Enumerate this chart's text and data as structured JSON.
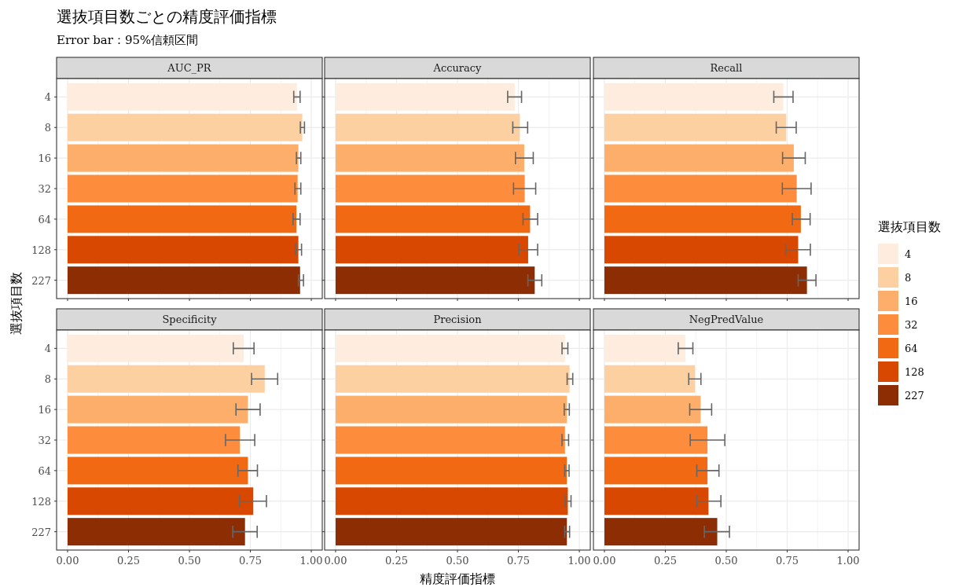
{
  "chart_data": [
    {
      "type": "bar",
      "orientation": "horizontal",
      "stacked": true,
      "title": "AUC_PR",
      "legend": "right",
      "legend_title": "選抜項目数",
      "annotations": [
        "選抜項目数ごとの精度評価指標"
      ],
      "subtitle": "Error bar：95%信頼区間",
      "ylabel": "選抜項目数",
      "grid": true,
      "tick_labels": "y",
      "categories": [
        "4",
        "8",
        "16",
        "32",
        "64",
        "128",
        "227"
      ],
      "xlim": [
        -0.045,
        1.045
      ],
      "xticks": [
        {
          "value": 0,
          "label": null
        },
        {
          "value": 0.25,
          "label": null
        },
        {
          "value": 0.5,
          "label": null
        },
        {
          "value": 0.75,
          "label": null
        },
        {
          "value": 1,
          "label": null
        }
      ],
      "series": [
        {
          "name": "4",
          "color": "#feedde",
          "values": [
            0.941,
            null,
            null,
            null,
            null,
            null,
            null
          ],
          "errors": [
            [
              0.928,
              0.954
            ],
            null,
            null,
            null,
            null,
            null,
            null
          ]
        },
        {
          "name": "8",
          "color": "#fdd0a2",
          "values": [
            null,
            0.963,
            null,
            null,
            null,
            null,
            null
          ],
          "errors": [
            null,
            [
              0.955,
              0.972
            ],
            null,
            null,
            null,
            null,
            null
          ]
        },
        {
          "name": "16",
          "color": "#fdae6b",
          "values": [
            null,
            null,
            0.947,
            null,
            null,
            null,
            null
          ],
          "errors": [
            null,
            null,
            [
              0.939,
              0.957
            ],
            null,
            null,
            null,
            null
          ]
        },
        {
          "name": "32",
          "color": "#fd8d3c",
          "values": [
            null,
            null,
            null,
            0.944,
            null,
            null,
            null
          ],
          "errors": [
            null,
            null,
            null,
            [
              0.933,
              0.957
            ],
            null,
            null,
            null
          ]
        },
        {
          "name": "64",
          "color": "#f16913",
          "values": [
            null,
            null,
            null,
            null,
            0.939,
            null,
            null
          ],
          "errors": [
            null,
            null,
            null,
            null,
            [
              0.925,
              0.954
            ],
            null,
            null
          ]
        },
        {
          "name": "128",
          "color": "#d94801",
          "values": [
            null,
            null,
            null,
            null,
            null,
            0.947,
            null
          ],
          "errors": [
            null,
            null,
            null,
            null,
            null,
            [
              0.936,
              0.96
            ],
            null
          ]
        },
        {
          "name": "227",
          "color": "#8c2d04",
          "values": [
            null,
            null,
            null,
            null,
            null,
            null,
            0.954
          ],
          "errors": [
            null,
            null,
            null,
            null,
            null,
            null,
            [
              0.947,
              0.968
            ]
          ]
        }
      ]
    },
    {
      "type": "bar",
      "orientation": "horizontal",
      "stacked": true,
      "title": "Accuracy",
      "grid": true,
      "tick_labels": false,
      "categories": [
        "4",
        "8",
        "16",
        "32",
        "64",
        "128",
        "227"
      ],
      "xlim": [
        -0.045,
        1.045
      ],
      "xticks": [
        {
          "value": 0,
          "label": null
        },
        {
          "value": 0.25,
          "label": null
        },
        {
          "value": 0.5,
          "label": null
        },
        {
          "value": 0.75,
          "label": null
        },
        {
          "value": 1,
          "label": null
        }
      ],
      "series": [
        {
          "color": "#feedde",
          "values": [
            0.735,
            null,
            null,
            null,
            null,
            null,
            null
          ],
          "errors": [
            [
              0.706,
              0.763
            ],
            null,
            null,
            null,
            null,
            null,
            null
          ]
        },
        {
          "color": "#fdd0a2",
          "values": [
            null,
            0.756,
            null,
            null,
            null,
            null,
            null
          ],
          "errors": [
            null,
            [
              0.727,
              0.788
            ],
            null,
            null,
            null,
            null,
            null
          ]
        },
        {
          "color": "#fdae6b",
          "values": [
            null,
            null,
            0.774,
            null,
            null,
            null,
            null
          ],
          "errors": [
            null,
            null,
            [
              0.738,
              0.811
            ],
            null,
            null,
            null,
            null
          ]
        },
        {
          "color": "#fd8d3c",
          "values": [
            null,
            null,
            null,
            0.776,
            null,
            null,
            null
          ],
          "errors": [
            null,
            null,
            null,
            [
              0.73,
              0.821
            ],
            null,
            null,
            null
          ]
        },
        {
          "color": "#f16913",
          "values": [
            null,
            null,
            null,
            null,
            0.798,
            null,
            null
          ],
          "errors": [
            null,
            null,
            null,
            null,
            [
              0.769,
              0.829
            ],
            null,
            null
          ]
        },
        {
          "color": "#d94801",
          "values": [
            null,
            null,
            null,
            null,
            null,
            0.79,
            null
          ],
          "errors": [
            null,
            null,
            null,
            null,
            null,
            [
              0.752,
              0.829
            ],
            null
          ]
        },
        {
          "color": "#8c2d04",
          "values": [
            null,
            null,
            null,
            null,
            null,
            null,
            0.817
          ],
          "errors": [
            null,
            null,
            null,
            null,
            null,
            null,
            [
              0.789,
              0.846
            ]
          ]
        }
      ]
    },
    {
      "type": "bar",
      "orientation": "horizontal",
      "stacked": true,
      "title": "Recall",
      "grid": true,
      "tick_labels": false,
      "categories": [
        "4",
        "8",
        "16",
        "32",
        "64",
        "128",
        "227"
      ],
      "xlim": [
        -0.045,
        1.045
      ],
      "xticks": [
        {
          "value": 0,
          "label": null
        },
        {
          "value": 0.25,
          "label": null
        },
        {
          "value": 0.5,
          "label": null
        },
        {
          "value": 0.75,
          "label": null
        },
        {
          "value": 1,
          "label": null
        }
      ],
      "series": [
        {
          "color": "#feedde",
          "values": [
            0.734,
            null,
            null,
            null,
            null,
            null,
            null
          ],
          "errors": [
            [
              0.695,
              0.774
            ],
            null,
            null,
            null,
            null,
            null,
            null
          ]
        },
        {
          "color": "#fdd0a2",
          "values": [
            null,
            0.746,
            null,
            null,
            null,
            null,
            null
          ],
          "errors": [
            null,
            [
              0.705,
              0.787
            ],
            null,
            null,
            null,
            null,
            null
          ]
        },
        {
          "color": "#fdae6b",
          "values": [
            null,
            null,
            0.777,
            null,
            null,
            null,
            null
          ],
          "errors": [
            null,
            null,
            [
              0.731,
              0.824
            ],
            null,
            null,
            null,
            null
          ]
        },
        {
          "color": "#fd8d3c",
          "values": [
            null,
            null,
            null,
            0.789,
            null,
            null,
            null
          ],
          "errors": [
            null,
            null,
            null,
            [
              0.73,
              0.848
            ],
            null,
            null,
            null
          ]
        },
        {
          "color": "#f16913",
          "values": [
            null,
            null,
            null,
            null,
            0.806,
            null,
            null
          ],
          "errors": [
            null,
            null,
            null,
            null,
            [
              0.771,
              0.844
            ],
            null,
            null
          ]
        },
        {
          "color": "#d94801",
          "values": [
            null,
            null,
            null,
            null,
            null,
            0.795,
            null
          ],
          "errors": [
            null,
            null,
            null,
            null,
            null,
            [
              0.744,
              0.845
            ],
            null
          ]
        },
        {
          "color": "#8c2d04",
          "values": [
            null,
            null,
            null,
            null,
            null,
            null,
            0.831
          ],
          "errors": [
            null,
            null,
            null,
            null,
            null,
            null,
            [
              0.795,
              0.868
            ]
          ]
        }
      ]
    },
    {
      "type": "bar",
      "orientation": "horizontal",
      "stacked": true,
      "title": "Specificity",
      "grid": true,
      "categories": [
        "4",
        "8",
        "16",
        "32",
        "64",
        "128",
        "227"
      ],
      "xlim": [
        -0.045,
        1.045
      ],
      "xticks": [
        {
          "value": 0,
          "label": "0.00"
        },
        {
          "value": 0.25,
          "label": "0.25"
        },
        {
          "value": 0.5,
          "label": "0.50"
        },
        {
          "value": 0.75,
          "label": "0.75"
        },
        {
          "value": 1,
          "label": "1.00"
        }
      ],
      "series": [
        {
          "color": "#feedde",
          "values": [
            0.723,
            null,
            null,
            null,
            null,
            null,
            null
          ],
          "errors": [
            [
              0.68,
              0.765
            ],
            null,
            null,
            null,
            null,
            null,
            null
          ]
        },
        {
          "color": "#fdd0a2",
          "values": [
            null,
            0.809,
            null,
            null,
            null,
            null,
            null
          ],
          "errors": [
            null,
            [
              0.755,
              0.862
            ],
            null,
            null,
            null,
            null,
            null
          ]
        },
        {
          "color": "#fdae6b",
          "values": [
            null,
            null,
            0.74,
            null,
            null,
            null,
            null
          ],
          "errors": [
            null,
            null,
            [
              0.691,
              0.79
            ],
            null,
            null,
            null,
            null
          ]
        },
        {
          "color": "#fd8d3c",
          "values": [
            null,
            null,
            null,
            0.707,
            null,
            null,
            null
          ],
          "errors": [
            null,
            null,
            null,
            [
              0.648,
              0.768
            ],
            null,
            null,
            null
          ]
        },
        {
          "color": "#f16913",
          "values": [
            null,
            null,
            null,
            null,
            0.74,
            null,
            null
          ],
          "errors": [
            null,
            null,
            null,
            null,
            [
              0.699,
              0.779
            ],
            null,
            null
          ]
        },
        {
          "color": "#d94801",
          "values": [
            null,
            null,
            null,
            null,
            null,
            0.762,
            null
          ],
          "errors": [
            null,
            null,
            null,
            null,
            null,
            [
              0.705,
              0.816
            ],
            null
          ]
        },
        {
          "color": "#8c2d04",
          "values": [
            null,
            null,
            null,
            null,
            null,
            null,
            0.728
          ],
          "errors": [
            null,
            null,
            null,
            null,
            null,
            null,
            [
              0.678,
              0.778
            ]
          ]
        }
      ]
    },
    {
      "type": "bar",
      "orientation": "horizontal",
      "stacked": true,
      "title": "Precision",
      "xlabel": "精度評価指標",
      "grid": true,
      "tick_labels": "x",
      "categories": [
        "4",
        "8",
        "16",
        "32",
        "64",
        "128",
        "227"
      ],
      "xlim": [
        -0.045,
        1.045
      ],
      "xticks": [
        {
          "value": 0,
          "label": "0.00"
        },
        {
          "value": 0.25,
          "label": "0.25"
        },
        {
          "value": 0.5,
          "label": "0.50"
        },
        {
          "value": 0.75,
          "label": "0.75"
        },
        {
          "value": 1,
          "label": "1.00"
        }
      ],
      "series": [
        {
          "color": "#feedde",
          "values": [
            0.941,
            null,
            null,
            null,
            null,
            null,
            null
          ],
          "errors": [
            [
              0.929,
              0.953
            ],
            null,
            null,
            null,
            null,
            null,
            null
          ]
        },
        {
          "color": "#fdd0a2",
          "values": [
            null,
            0.96,
            null,
            null,
            null,
            null,
            null
          ],
          "errors": [
            null,
            [
              0.95,
              0.973
            ],
            null,
            null,
            null,
            null,
            null
          ]
        },
        {
          "color": "#fdae6b",
          "values": [
            null,
            null,
            0.949,
            null,
            null,
            null,
            null
          ],
          "errors": [
            null,
            null,
            [
              0.938,
              0.959
            ],
            null,
            null,
            null,
            null
          ]
        },
        {
          "color": "#fd8d3c",
          "values": [
            null,
            null,
            null,
            0.941,
            null,
            null,
            null
          ],
          "errors": [
            null,
            null,
            null,
            [
              0.929,
              0.956
            ],
            null,
            null,
            null
          ]
        },
        {
          "color": "#f16913",
          "values": [
            null,
            null,
            null,
            null,
            0.949,
            null,
            null
          ],
          "errors": [
            null,
            null,
            null,
            null,
            [
              0.94,
              0.958
            ],
            null,
            null
          ]
        },
        {
          "color": "#d94801",
          "values": [
            null,
            null,
            null,
            null,
            null,
            0.953,
            null
          ],
          "errors": [
            null,
            null,
            null,
            null,
            null,
            [
              0.942,
              0.966
            ],
            null
          ]
        },
        {
          "color": "#8c2d04",
          "values": [
            null,
            null,
            null,
            null,
            null,
            null,
            0.949
          ],
          "errors": [
            null,
            null,
            null,
            null,
            null,
            null,
            [
              0.94,
              0.96
            ]
          ]
        }
      ]
    },
    {
      "type": "bar",
      "orientation": "horizontal",
      "stacked": true,
      "title": "NegPredValue",
      "grid": true,
      "tick_labels": "x",
      "categories": [
        "4",
        "8",
        "16",
        "32",
        "64",
        "128",
        "227"
      ],
      "xlim": [
        -0.045,
        1.045
      ],
      "xticks": [
        {
          "value": 0,
          "label": "0.00"
        },
        {
          "value": 0.25,
          "label": "0.25"
        },
        {
          "value": 0.5,
          "label": "0.50"
        },
        {
          "value": 0.75,
          "label": "0.75"
        },
        {
          "value": 1,
          "label": "1.00"
        }
      ],
      "series": [
        {
          "color": "#feedde",
          "values": [
            0.332,
            null,
            null,
            null,
            null,
            null,
            null
          ],
          "errors": [
            [
              0.303,
              0.363
            ],
            null,
            null,
            null,
            null,
            null,
            null
          ]
        },
        {
          "color": "#fdd0a2",
          "values": [
            null,
            0.372,
            null,
            null,
            null,
            null,
            null
          ],
          "errors": [
            null,
            [
              0.346,
              0.396
            ],
            null,
            null,
            null,
            null,
            null
          ]
        },
        {
          "color": "#fdae6b",
          "values": [
            null,
            null,
            0.395,
            null,
            null,
            null,
            null
          ],
          "errors": [
            null,
            null,
            [
              0.35,
              0.44
            ],
            null,
            null,
            null,
            null
          ]
        },
        {
          "color": "#fd8d3c",
          "values": [
            null,
            null,
            null,
            0.423,
            null,
            null,
            null
          ],
          "errors": [
            null,
            null,
            null,
            [
              0.352,
              0.494
            ],
            null,
            null,
            null
          ]
        },
        {
          "color": "#f16913",
          "values": [
            null,
            null,
            null,
            null,
            0.423,
            null,
            null
          ],
          "errors": [
            null,
            null,
            null,
            null,
            [
              0.379,
              0.47
            ],
            null,
            null
          ]
        },
        {
          "color": "#d94801",
          "values": [
            null,
            null,
            null,
            null,
            null,
            0.427,
            null
          ],
          "errors": [
            null,
            null,
            null,
            null,
            null,
            [
              0.379,
              0.478
            ],
            null
          ]
        },
        {
          "color": "#8c2d04",
          "values": [
            null,
            null,
            null,
            null,
            null,
            null,
            0.463
          ],
          "errors": [
            null,
            null,
            null,
            null,
            null,
            null,
            [
              0.41,
              0.513
            ]
          ]
        }
      ]
    }
  ]
}
